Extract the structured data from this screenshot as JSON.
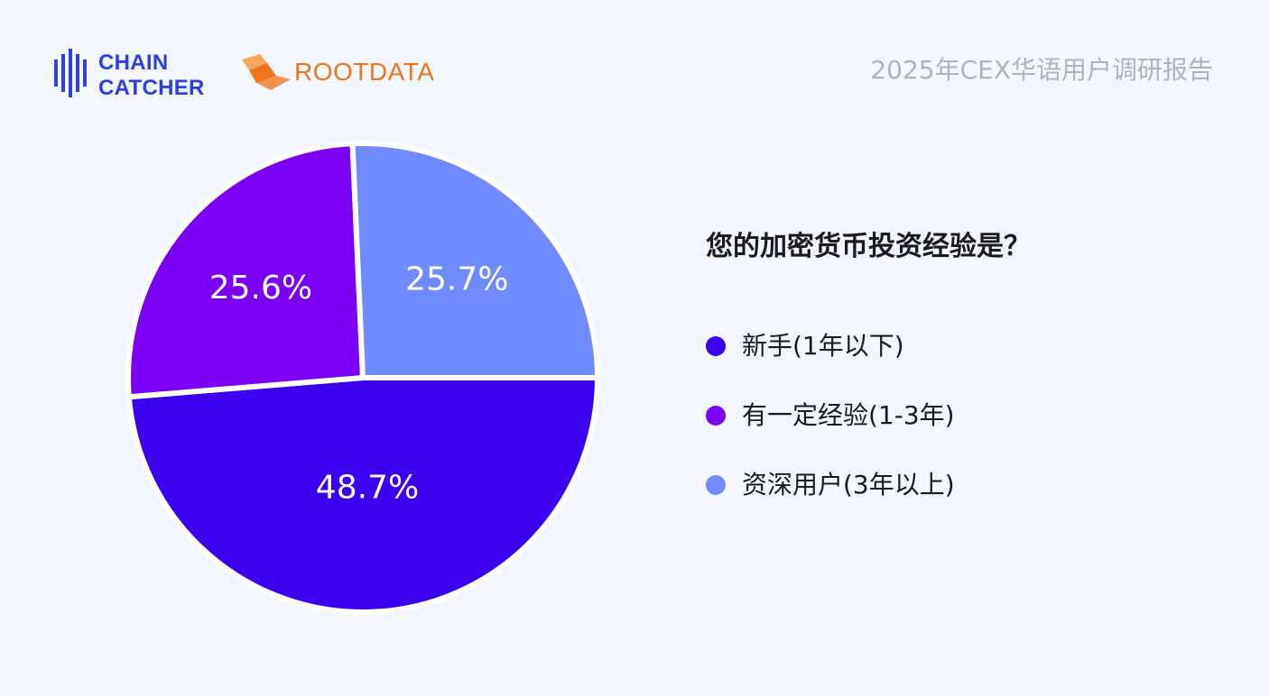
{
  "header": {
    "logo_chaincatcher": {
      "line1": "CHAIN",
      "line2": "CATCHER",
      "color": "#2b40e0"
    },
    "logo_rootdata": {
      "text": "ROOTDATA",
      "color": "#f0751a"
    },
    "report_title": "2025年CEX华语用户调研报告"
  },
  "chart_data": {
    "type": "pie",
    "title": "您的加密货币投资经验是？",
    "slices": [
      {
        "label": "新手(1年以下)",
        "value": 48.7,
        "display": "48.7%",
        "color": "#3a00ef"
      },
      {
        "label": "有一定经验(1-3年)",
        "value": 25.6,
        "display": "25.6%",
        "color": "#7b00f5"
      },
      {
        "label": "资深用户(3年以上)",
        "value": 25.7,
        "display": "25.7%",
        "color": "#708bff"
      }
    ],
    "legend_position": "right"
  },
  "colors": {
    "background": "#f3f6fe",
    "slice_border": "#ffffff",
    "label_text": "#ffffff"
  }
}
